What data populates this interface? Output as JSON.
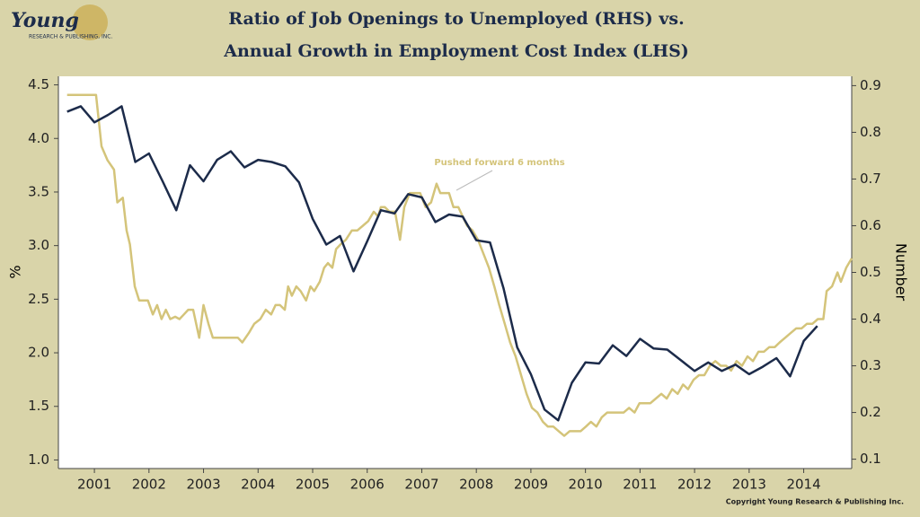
{
  "logo": {
    "name": "Young",
    "subtitle": "RESEARCH & PUBLISHING, INC."
  },
  "copyright": "Copyright Young Research & Publishing Inc.",
  "chart_data": {
    "type": "line",
    "title": [
      "Ratio of Job Openings to Unemployed (RHS) vs.",
      "Annual Growth in Employment Cost Index (LHS)"
    ],
    "y_label": "%",
    "y2_label": "Number",
    "annotation": "Pushed forward 6 months",
    "xlim": [
      2000.84,
      2015.38
    ],
    "xticks": [
      {
        "value": 2001.5,
        "label": "2001"
      },
      {
        "value": 2002.5,
        "label": "2002"
      },
      {
        "value": 2003.5,
        "label": "2003"
      },
      {
        "value": 2004.5,
        "label": "2004"
      },
      {
        "value": 2005.5,
        "label": "2005"
      },
      {
        "value": 2006.5,
        "label": "2006"
      },
      {
        "value": 2007.5,
        "label": "2007"
      },
      {
        "value": 2008.5,
        "label": "2008"
      },
      {
        "value": 2009.5,
        "label": "2009"
      },
      {
        "value": 2010.5,
        "label": "2010"
      },
      {
        "value": 2011.5,
        "label": "2011"
      },
      {
        "value": 2012.5,
        "label": "2012"
      },
      {
        "value": 2013.5,
        "label": "2013"
      },
      {
        "value": 2014.5,
        "label": "2014"
      }
    ],
    "ylim": [
      0.92,
      4.58
    ],
    "yticks": [
      {
        "value": 1,
        "label": "1.0"
      },
      1.5,
      {
        "value": 2,
        "label": "2.0"
      },
      2.5,
      {
        "value": 3,
        "label": "3.0"
      },
      3.5,
      {
        "value": 4,
        "label": "4.0"
      },
      4.5
    ],
    "y2lim": [
      0.08,
      0.92
    ],
    "y2ticks": [
      0.1,
      0.2,
      0.3,
      0.4,
      0.5,
      0.6,
      0.7,
      0.8,
      0.9
    ],
    "grid": false,
    "series": [
      {
        "color": "#1c2b4a",
        "axis": "y",
        "x": [
          2001.0,
          2001.25,
          2001.5,
          2001.75,
          2002.0,
          2002.25,
          2002.5,
          2002.75,
          2003.0,
          2003.25,
          2003.5,
          2003.75,
          2004.0,
          2004.25,
          2004.5,
          2004.75,
          2005.0,
          2005.25,
          2005.5,
          2005.75,
          2006.0,
          2006.25,
          2006.5,
          2006.75,
          2007.0,
          2007.25,
          2007.5,
          2007.75,
          2008.0,
          2008.25,
          2008.5,
          2008.75,
          2009.0,
          2009.25,
          2009.5,
          2009.75,
          2010.0,
          2010.25,
          2010.5,
          2010.75,
          2011.0,
          2011.25,
          2011.5,
          2011.75,
          2012.0,
          2012.25,
          2012.5,
          2012.75,
          2013.0,
          2013.25,
          2013.5,
          2013.75,
          2014.0,
          2014.25,
          2014.5,
          2014.75
        ],
        "values": [
          4.25,
          4.3,
          4.15,
          4.22,
          4.3,
          3.78,
          3.86,
          3.6,
          3.33,
          3.75,
          3.6,
          3.8,
          3.88,
          3.73,
          3.8,
          3.78,
          3.74,
          3.59,
          3.25,
          3.01,
          3.09,
          2.76,
          3.04,
          3.33,
          3.3,
          3.48,
          3.45,
          3.22,
          3.29,
          3.27,
          3.05,
          3.03,
          2.6,
          2.05,
          1.8,
          1.47,
          1.37,
          1.72,
          1.91,
          1.9,
          2.07,
          1.97,
          2.13,
          2.04,
          2.03,
          1.93,
          1.83,
          1.91,
          1.83,
          1.89,
          1.8,
          1.87,
          1.95,
          1.78,
          2.11,
          2.25
        ]
      },
      {
        "color": "#d4c47a",
        "axis": "y2",
        "x": [
          2001.0,
          2001.53,
          2001.63,
          2001.74,
          2001.86,
          2001.92,
          2002.02,
          2002.09,
          2002.15,
          2002.24,
          2002.32,
          2002.4,
          2002.48,
          2002.57,
          2002.65,
          2002.73,
          2002.81,
          2002.89,
          2002.98,
          2003.06,
          2003.14,
          2003.22,
          2003.31,
          2003.42,
          2003.5,
          2003.59,
          2003.67,
          2003.8,
          2003.92,
          2004.01,
          2004.13,
          2004.21,
          2004.33,
          2004.43,
          2004.54,
          2004.64,
          2004.74,
          2004.82,
          2004.9,
          2004.99,
          2005.05,
          2005.12,
          2005.2,
          2005.28,
          2005.38,
          2005.46,
          2005.53,
          2005.63,
          2005.71,
          2005.78,
          2005.86,
          2005.93,
          2006.01,
          2006.11,
          2006.22,
          2006.32,
          2006.42,
          2006.52,
          2006.62,
          2006.7,
          2006.75,
          2006.82,
          2006.91,
          2007.01,
          2007.1,
          2007.18,
          2007.28,
          2007.38,
          2007.47,
          2007.57,
          2007.67,
          2007.77,
          2007.84,
          2007.92,
          2008.0,
          2008.08,
          2008.17,
          2008.25,
          2008.33,
          2008.43,
          2008.53,
          2008.63,
          2008.73,
          2008.83,
          2008.92,
          2009.02,
          2009.12,
          2009.22,
          2009.32,
          2009.42,
          2009.52,
          2009.62,
          2009.72,
          2009.81,
          2009.91,
          2010.01,
          2010.11,
          2010.21,
          2010.31,
          2010.41,
          2010.51,
          2010.6,
          2010.7,
          2010.8,
          2010.9,
          2011.0,
          2011.1,
          2011.2,
          2011.3,
          2011.4,
          2011.49,
          2011.59,
          2011.69,
          2011.79,
          2011.89,
          2011.99,
          2012.09,
          2012.19,
          2012.29,
          2012.38,
          2012.48,
          2012.58,
          2012.68,
          2012.78,
          2012.88,
          2012.98,
          2013.08,
          2013.17,
          2013.27,
          2013.37,
          2013.47,
          2013.57,
          2013.67,
          2013.77,
          2013.87,
          2013.97,
          2014.06,
          2014.16,
          2014.26,
          2014.36,
          2014.46,
          2014.56,
          2014.66,
          2014.76,
          2014.86,
          2014.92,
          2015.02,
          2015.12,
          2015.18,
          2015.28,
          2015.38
        ],
        "values": [
          0.88,
          0.88,
          0.77,
          0.74,
          0.72,
          0.65,
          0.66,
          0.59,
          0.56,
          0.47,
          0.44,
          0.44,
          0.44,
          0.41,
          0.43,
          0.4,
          0.42,
          0.4,
          0.405,
          0.4,
          0.41,
          0.42,
          0.42,
          0.36,
          0.43,
          0.39,
          0.36,
          0.36,
          0.36,
          0.36,
          0.36,
          0.35,
          0.37,
          0.39,
          0.4,
          0.42,
          0.41,
          0.43,
          0.43,
          0.42,
          0.47,
          0.45,
          0.47,
          0.46,
          0.44,
          0.47,
          0.46,
          0.48,
          0.51,
          0.52,
          0.51,
          0.55,
          0.56,
          0.57,
          0.59,
          0.59,
          0.6,
          0.61,
          0.63,
          0.62,
          0.64,
          0.64,
          0.63,
          0.63,
          0.57,
          0.64,
          0.67,
          0.67,
          0.67,
          0.64,
          0.65,
          0.69,
          0.67,
          0.67,
          0.67,
          0.64,
          0.64,
          0.62,
          0.6,
          0.59,
          0.57,
          0.54,
          0.51,
          0.47,
          0.43,
          0.39,
          0.35,
          0.32,
          0.28,
          0.24,
          0.21,
          0.2,
          0.18,
          0.17,
          0.17,
          0.16,
          0.15,
          0.16,
          0.16,
          0.16,
          0.17,
          0.18,
          0.17,
          0.19,
          0.2,
          0.2,
          0.2,
          0.2,
          0.21,
          0.2,
          0.22,
          0.22,
          0.22,
          0.23,
          0.24,
          0.23,
          0.25,
          0.24,
          0.26,
          0.25,
          0.27,
          0.28,
          0.28,
          0.3,
          0.31,
          0.3,
          0.3,
          0.29,
          0.31,
          0.3,
          0.32,
          0.31,
          0.33,
          0.33,
          0.34,
          0.34,
          0.35,
          0.36,
          0.37,
          0.38,
          0.38,
          0.39,
          0.39,
          0.4,
          0.4,
          0.46,
          0.47,
          0.5,
          0.48,
          0.51,
          0.53
        ]
      }
    ]
  }
}
